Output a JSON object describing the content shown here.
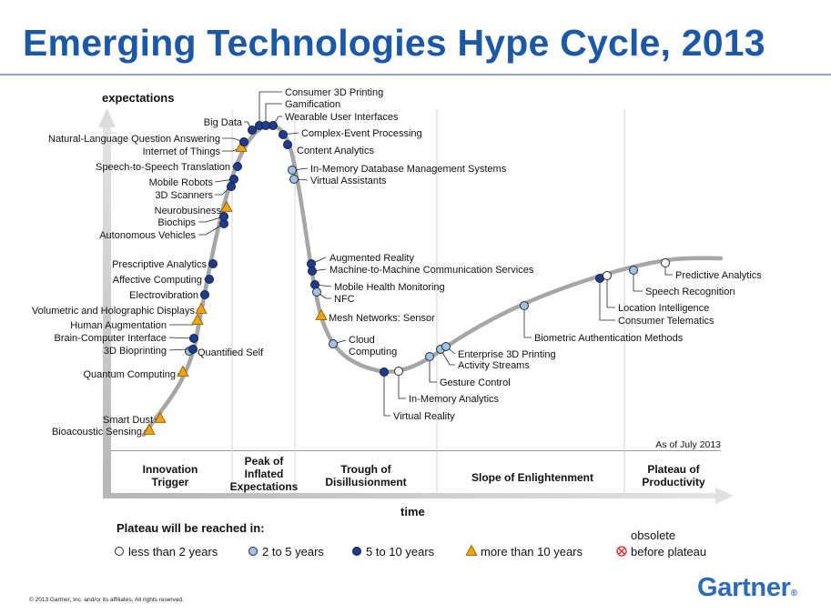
{
  "title": "Emerging Technologies Hype Cycle, 2013",
  "axis": {
    "y_label": "expectations",
    "x_label": "time"
  },
  "as_of": "As of July 2013",
  "phases": [
    {
      "id": "innovation",
      "lines": [
        "Innovation",
        "Trigger"
      ]
    },
    {
      "id": "peak",
      "lines": [
        "Peak of",
        "Inflated",
        "Expectations"
      ]
    },
    {
      "id": "trough",
      "lines": [
        "Trough of",
        "Disillusionment"
      ]
    },
    {
      "id": "slope",
      "lines": [
        "Slope of Enlightenment"
      ]
    },
    {
      "id": "plateau",
      "lines": [
        "Plateau of",
        "Productivity"
      ]
    }
  ],
  "legend": {
    "heading": "Plateau will be reached in:",
    "items": [
      {
        "key": "lt2",
        "label": "less than 2 years"
      },
      {
        "key": "2to5",
        "label": "2 to 5 years"
      },
      {
        "key": "5to10",
        "label": "5 to 10 years"
      },
      {
        "key": "gt10",
        "label": "more than 10 years"
      },
      {
        "key": "obsolete",
        "label_top": "obsolete",
        "label": "before plateau"
      }
    ]
  },
  "colors": {
    "title": "#1c58a6",
    "curve": "#a6a6a6",
    "lt2": "#ffffff",
    "2to5": "#9cc3e6",
    "5to10": "#1f3c88",
    "gt10": "#f0a30a",
    "obsolete": "#e02020"
  },
  "technologies": [
    {
      "name": "Bioacoustic Sensing",
      "cat": "gt10"
    },
    {
      "name": "Smart Dust",
      "cat": "gt10"
    },
    {
      "name": "Quantum Computing",
      "cat": "gt10"
    },
    {
      "name": "Quantified Self",
      "cat": "2to5"
    },
    {
      "name": "3D Bioprinting",
      "cat": "5to10"
    },
    {
      "name": "Brain-Computer Interface",
      "cat": "5to10"
    },
    {
      "name": "Human Augmentation",
      "cat": "gt10"
    },
    {
      "name": "Volumetric and Holographic Displays",
      "cat": "gt10"
    },
    {
      "name": "Electrovibration",
      "cat": "5to10"
    },
    {
      "name": "Affective Computing",
      "cat": "5to10"
    },
    {
      "name": "Prescriptive Analytics",
      "cat": "5to10"
    },
    {
      "name": "Autonomous Vehicles",
      "cat": "5to10"
    },
    {
      "name": "Biochips",
      "cat": "5to10"
    },
    {
      "name": "Neurobusiness",
      "cat": "gt10"
    },
    {
      "name": "3D Scanners",
      "cat": "5to10"
    },
    {
      "name": "Mobile Robots",
      "cat": "5to10"
    },
    {
      "name": "Speech-to-Speech Translation",
      "cat": "5to10"
    },
    {
      "name": "Internet of Things",
      "cat": "gt10"
    },
    {
      "name": "Natural-Language Question Answering",
      "cat": "5to10"
    },
    {
      "name": "Big Data",
      "cat": "5to10"
    },
    {
      "name": "Consumer 3D Printing",
      "cat": "5to10"
    },
    {
      "name": "Gamification",
      "cat": "5to10"
    },
    {
      "name": "Wearable User Interfaces",
      "cat": "5to10"
    },
    {
      "name": "Complex-Event Processing",
      "cat": "5to10"
    },
    {
      "name": "Content Analytics",
      "cat": "5to10"
    },
    {
      "name": "In-Memory Database Management Systems",
      "cat": "2to5"
    },
    {
      "name": "Virtual Assistants",
      "cat": "2to5"
    },
    {
      "name": "Augmented Reality",
      "cat": "5to10"
    },
    {
      "name": "Machine-to-Machine Communication Services",
      "cat": "5to10"
    },
    {
      "name": "Mobile Health Monitoring",
      "cat": "5to10"
    },
    {
      "name": "NFC",
      "cat": "2to5"
    },
    {
      "name": "Mesh Networks: Sensor",
      "cat": "gt10"
    },
    {
      "name": "Cloud Computing",
      "cat": "2to5"
    },
    {
      "name": "Virtual Reality",
      "cat": "5to10"
    },
    {
      "name": "In-Memory Analytics",
      "cat": "lt2"
    },
    {
      "name": "Gesture Control",
      "cat": "2to5"
    },
    {
      "name": "Activity Streams",
      "cat": "2to5"
    },
    {
      "name": "Enterprise 3D Printing",
      "cat": "2to5"
    },
    {
      "name": "Biometric Authentication Methods",
      "cat": "2to5"
    },
    {
      "name": "Consumer Telematics",
      "cat": "5to10"
    },
    {
      "name": "Location Intelligence",
      "cat": "lt2"
    },
    {
      "name": "Speech Recognition",
      "cat": "2to5"
    },
    {
      "name": "Predictive Analytics",
      "cat": "lt2"
    }
  ],
  "footer": {
    "copyright": "© 2013 Gartner, Inc. and/or its affiliates. All rights reserved.",
    "logo": "Gartner"
  }
}
